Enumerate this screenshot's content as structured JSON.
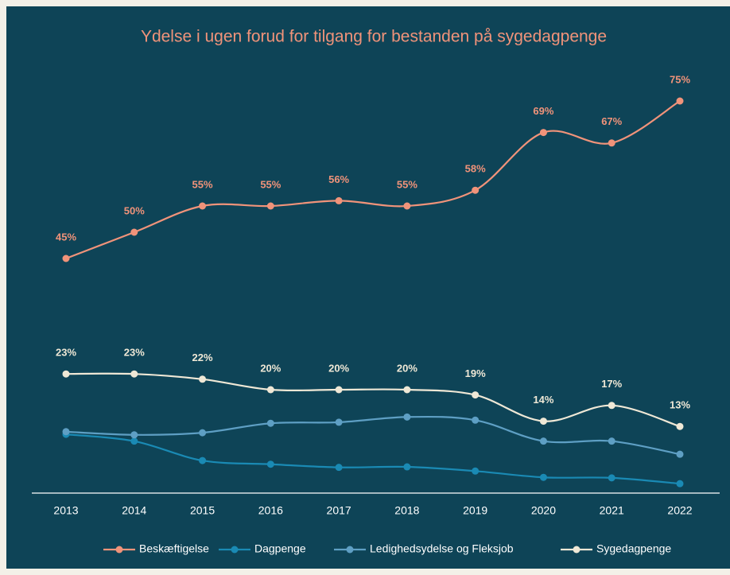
{
  "chart_data": {
    "type": "line",
    "title": "Ydelse i ugen forud for tilgang for bestanden på sygedagpenge",
    "categories": [
      "2013",
      "2014",
      "2015",
      "2016",
      "2017",
      "2018",
      "2019",
      "2020",
      "2021",
      "2022"
    ],
    "ylim": [
      0,
      80
    ],
    "series": [
      {
        "name": "Beskæftigelse",
        "color": "#f0937a",
        "values": [
          45,
          50,
          55,
          55,
          56,
          55,
          58,
          69,
          67,
          75
        ],
        "value_labels": [
          "45%",
          "50%",
          "55%",
          "55%",
          "56%",
          "55%",
          "58%",
          "69%",
          "67%",
          "75%"
        ]
      },
      {
        "name": "Dagpenge",
        "color": "#1a8ab4",
        "values": [
          11.5,
          10.2,
          6.5,
          5.8,
          5.2,
          5.3,
          4.5,
          3.3,
          3.2,
          2.1
        ]
      },
      {
        "name": "Ledighedsydelse og Fleksjob",
        "color": "#5e9fc4",
        "values": [
          12,
          11.4,
          11.8,
          13.6,
          13.8,
          14.8,
          14.2,
          10.2,
          10.2,
          7.7
        ]
      },
      {
        "name": "Sygedagpenge",
        "color": "#efe8d6",
        "values": [
          23,
          23,
          22,
          20,
          20,
          20,
          19,
          14,
          17,
          13
        ],
        "value_labels": [
          "23%",
          "23%",
          "22%",
          "20%",
          "20%",
          "20%",
          "19%",
          "14%",
          "17%",
          "13%"
        ]
      }
    ]
  }
}
